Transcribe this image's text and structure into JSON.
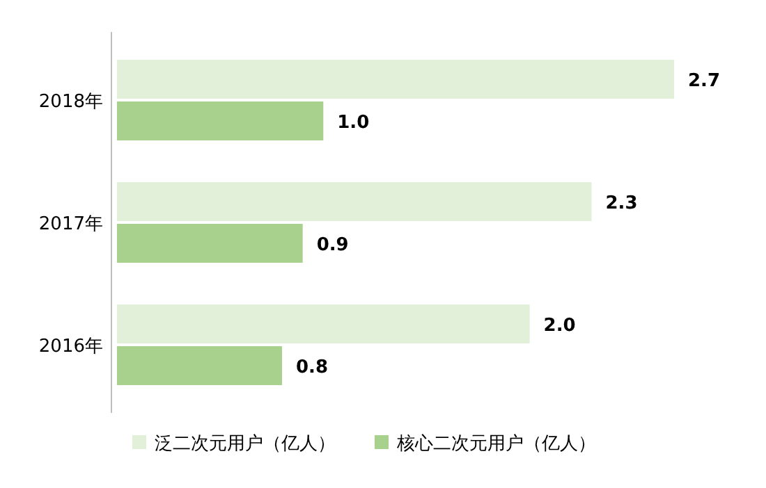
{
  "chart_data": {
    "type": "bar",
    "orientation": "horizontal",
    "categories": [
      "2018年",
      "2017年",
      "2016年"
    ],
    "series": [
      {
        "name": "泛二次元用户（亿人）",
        "color": "#e2efd9",
        "values": [
          2.7,
          2.3,
          2.0
        ],
        "value_labels": [
          "2.7",
          "2.3",
          "2.0"
        ]
      },
      {
        "name": "核心二次元用户（亿人）",
        "color": "#a9d18e",
        "values": [
          1.0,
          0.9,
          0.8
        ],
        "value_labels": [
          "1.0",
          "0.9",
          "0.8"
        ]
      }
    ],
    "legend": "bottom"
  }
}
